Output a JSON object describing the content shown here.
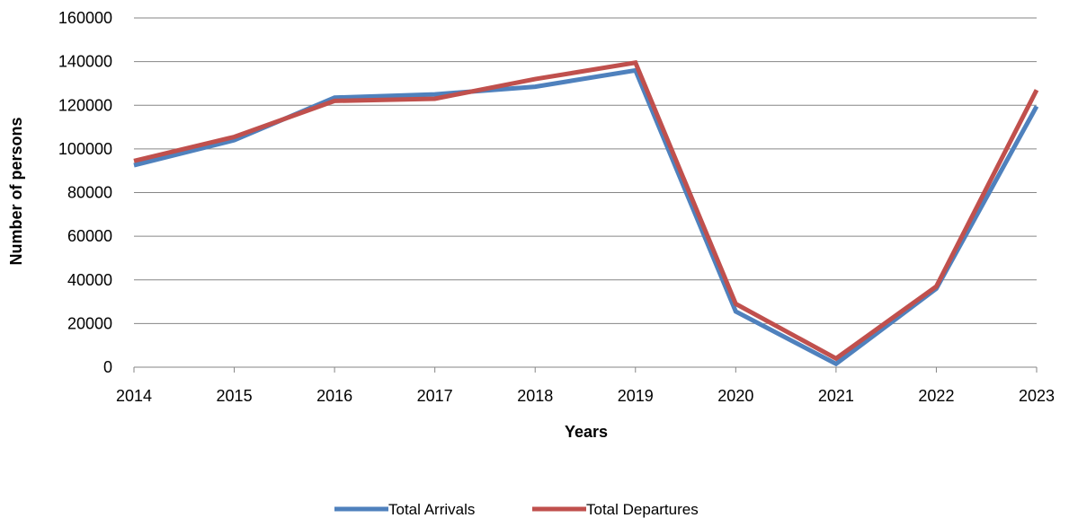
{
  "chart_data": {
    "type": "line",
    "categories": [
      "2014",
      "2015",
      "2016",
      "2017",
      "2018",
      "2019",
      "2020",
      "2021",
      "2022",
      "2023"
    ],
    "series": [
      {
        "name": "Total Arrivals",
        "color": "#4F81BD",
        "values": [
          92500,
          104000,
          123500,
          125000,
          128500,
          136000,
          25500,
          1500,
          36000,
          119500
        ]
      },
      {
        "name": "Total Departures",
        "color": "#C0504D",
        "values": [
          94500,
          105500,
          122000,
          123000,
          132000,
          139500,
          29000,
          4000,
          37000,
          127000
        ]
      }
    ],
    "xlabel": "Years",
    "ylabel": "Number of persons",
    "ylim": [
      0,
      160000
    ],
    "yticks": [
      "0",
      "20000",
      "40000",
      "60000",
      "80000",
      "100000",
      "120000",
      "140000",
      "160000"
    ],
    "grid": true,
    "legend": "bottom"
  }
}
